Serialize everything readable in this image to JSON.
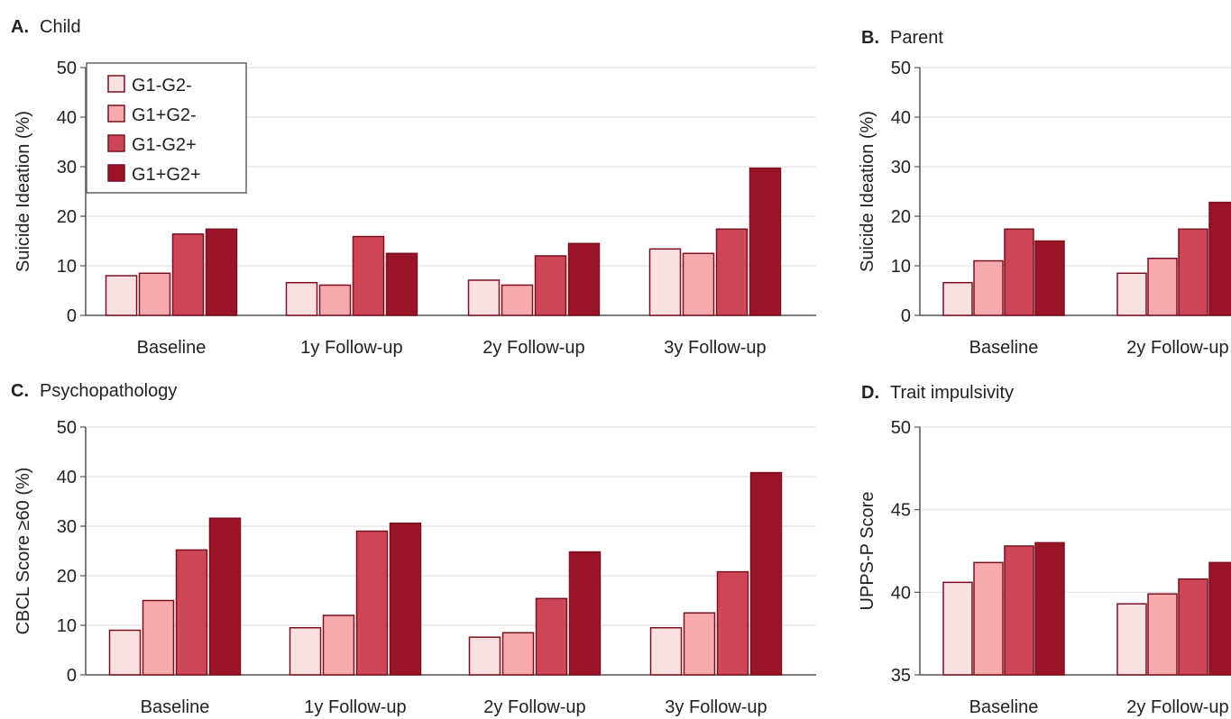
{
  "colors": {
    "G1-G2-": "#fbe0e1",
    "G1+G2-": "#f7aaae",
    "G1-G2+": "#cd4658",
    "G1+G2+": "#9a1428",
    "border": "#7a1020",
    "grid": "#e3e3e3",
    "axis": "#555555"
  },
  "chart_data": [
    {
      "id": "A",
      "type": "bar",
      "panel_letter": "A.",
      "title": "Child",
      "ylabel": "Suicide Ideation (%)",
      "ylim": [
        0,
        50
      ],
      "yticks": [
        0,
        10,
        20,
        30,
        40,
        50
      ],
      "grid": true,
      "legend": "top-left",
      "categories": [
        "Baseline",
        "1y Follow-up",
        "2y Follow-up",
        "3y Follow-up"
      ],
      "series": [
        {
          "name": "G1-G2-",
          "values": [
            8.0,
            6.6,
            7.1,
            13.4
          ]
        },
        {
          "name": "G1+G2-",
          "values": [
            8.5,
            6.1,
            6.1,
            12.5
          ]
        },
        {
          "name": "G1-G2+",
          "values": [
            16.4,
            15.9,
            12.0,
            17.4
          ]
        },
        {
          "name": "G1+G2+",
          "values": [
            17.4,
            12.5,
            14.5,
            29.7
          ]
        }
      ]
    },
    {
      "id": "B",
      "type": "bar",
      "panel_letter": "B.",
      "title": "Parent",
      "ylabel": "Suicide Ideation (%)",
      "ylim": [
        0,
        50
      ],
      "yticks": [
        0,
        10,
        20,
        30,
        40,
        50
      ],
      "grid": true,
      "categories": [
        "Baseline",
        "2y Follow-up"
      ],
      "series": [
        {
          "values": [
            6.6,
            8.5
          ]
        },
        {
          "values": [
            11.0,
            11.5
          ]
        },
        {
          "values": [
            17.4,
            17.4
          ]
        },
        {
          "values": [
            15.0,
            22.8
          ]
        }
      ]
    },
    {
      "id": "C",
      "type": "bar",
      "panel_letter": "C.",
      "title": "Psychopathology",
      "ylabel": "CBCL Score ≥60 (%)",
      "ylim": [
        0,
        50
      ],
      "yticks": [
        0,
        10,
        20,
        30,
        40,
        50
      ],
      "grid": true,
      "categories": [
        "Baseline",
        "1y Follow-up",
        "2y Follow-up",
        "3y Follow-up"
      ],
      "series": [
        {
          "values": [
            9.0,
            9.5,
            7.6,
            9.5
          ]
        },
        {
          "values": [
            15.0,
            12.0,
            8.5,
            12.5
          ]
        },
        {
          "values": [
            25.2,
            29.0,
            15.4,
            20.8
          ]
        },
        {
          "values": [
            31.6,
            30.6,
            24.8,
            40.8
          ]
        }
      ]
    },
    {
      "id": "D",
      "type": "bar",
      "panel_letter": "D.",
      "title": "Trait impulsivity",
      "ylabel": "UPPS-P Score",
      "ylim": [
        35,
        50
      ],
      "yticks": [
        35,
        40,
        45,
        50
      ],
      "grid": true,
      "categories": [
        "Baseline",
        "2y Follow-up"
      ],
      "series": [
        {
          "values": [
            40.6,
            39.3
          ]
        },
        {
          "values": [
            41.8,
            39.9
          ]
        },
        {
          "values": [
            42.8,
            40.8
          ]
        },
        {
          "values": [
            43.0,
            41.8
          ]
        }
      ]
    }
  ]
}
